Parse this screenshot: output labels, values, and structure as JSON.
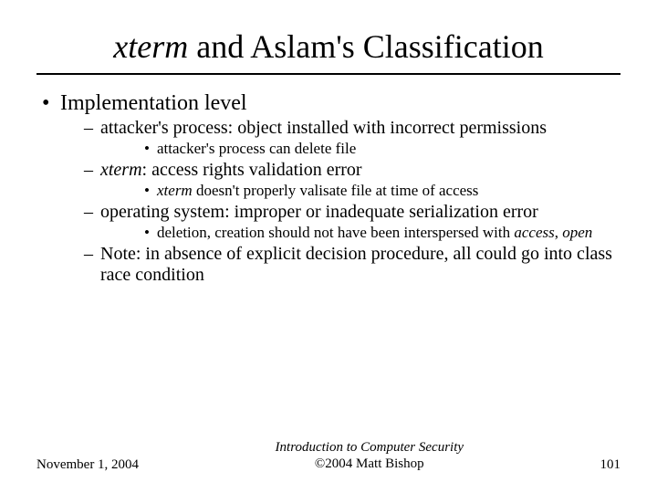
{
  "title_italic": "xterm",
  "title_rest": " and Aslam's Classification",
  "bullets": {
    "l1_0": "Implementation level",
    "l2_0": "attacker's process: object installed with incorrect permissions",
    "l3_0": "attacker's process can delete file",
    "l2_1_pre": "",
    "l2_1_it": "xterm",
    "l2_1_post": ": access rights validation error",
    "l3_1_pre": "",
    "l3_1_it": "xterm",
    "l3_1_post": " doesn't properly valisate file at time of access",
    "l2_2": "operating system: improper or inadequate serialization error",
    "l3_2_pre": "deletion, creation should not have been interspersed with ",
    "l3_2_it1": "access",
    "l3_2_mid": ", ",
    "l3_2_it2": "open",
    "l2_3": "Note: in absence of explicit decision procedure, all could go into class race condition"
  },
  "footer": {
    "date": "November 1, 2004",
    "center_line1": "Introduction to Computer Security",
    "center_line2": "©2004 Matt Bishop",
    "page": "101"
  },
  "style": {
    "background": "#ffffff",
    "text_color": "#000000",
    "rule_color": "#000000",
    "title_fontsize": 36,
    "l1_fontsize": 24,
    "l2_fontsize": 20,
    "l3_fontsize": 17,
    "footer_fontsize": 15
  }
}
